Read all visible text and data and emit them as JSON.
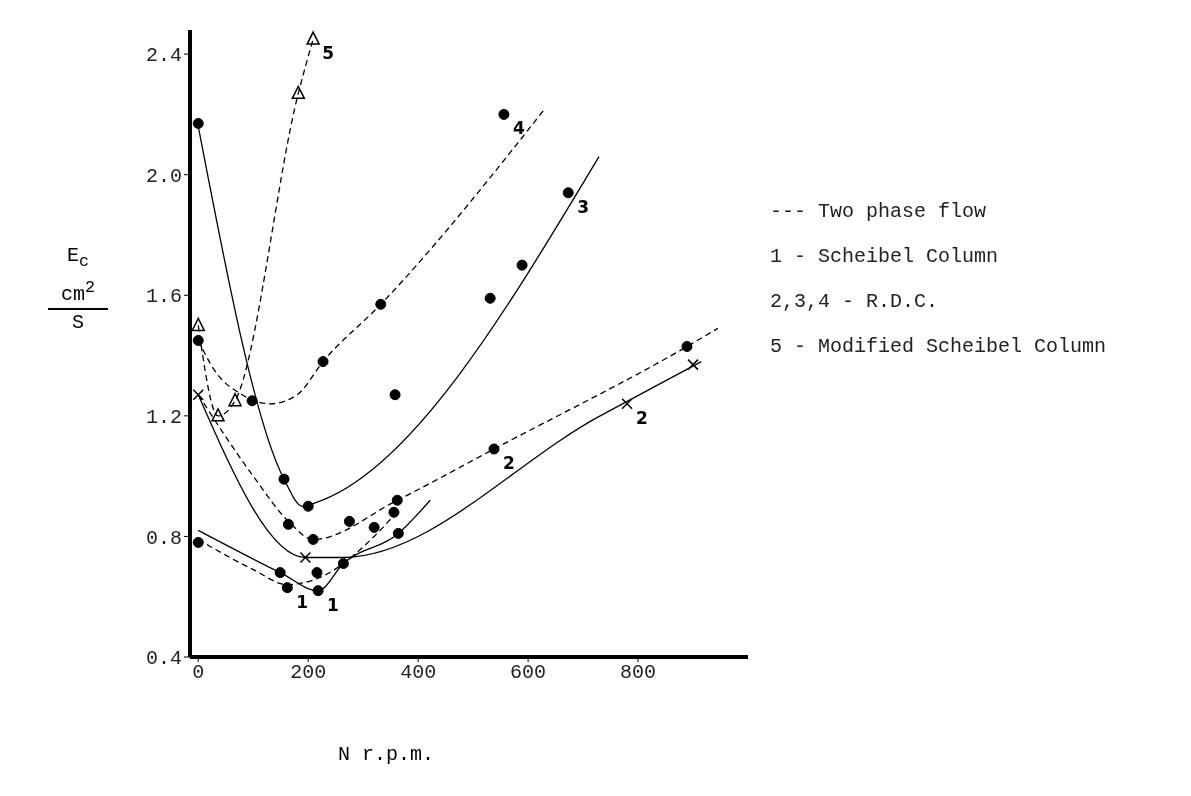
{
  "chart_data": {
    "type": "line",
    "xlabel": "N r.p.m.",
    "ylabel": "E$_{c}$ cm$^{2}$ S",
    "xlim": [
      -15,
      1000
    ],
    "xticks": [
      0,
      200,
      400,
      600,
      800
    ],
    "ylim": [
      0.4,
      2.48
    ],
    "yticks": [
      0.4,
      0.8,
      1.2,
      1.6,
      {
        "value": 2,
        "label": "2.0"
      },
      2.4
    ],
    "grid": false,
    "series": [
      {
        "color": "#000000",
        "line_style": "solid",
        "marker": "none",
        "x": [
          0,
          149,
          218,
          264,
          364,
          422
        ],
        "values": [
          0.82,
          0.68,
          0.62,
          0.71,
          0.81,
          0.92
        ]
      },
      {
        "color": "#000000",
        "line_style": "dashed",
        "marker": "none",
        "x": [
          0,
          100,
          162,
          216,
          320,
          356
        ],
        "values": [
          0.79,
          0.69,
          0.64,
          0.66,
          0.8,
          0.87
        ]
      },
      {
        "color": "#000000",
        "line_style": "solid",
        "marker": "none",
        "x": [
          0,
          195,
          262,
          731,
          915
        ],
        "values": [
          1.27,
          0.73,
          0.73,
          1.2,
          1.38
        ]
      },
      {
        "color": "#000000",
        "line_style": "dashed",
        "marker": "none",
        "x": [
          0,
          100,
          164,
          209,
          362,
          538,
          889,
          945
        ],
        "values": [
          1.27,
          1.0,
          0.85,
          0.79,
          0.92,
          1.09,
          1.43,
          1.49
        ]
      },
      {
        "color": "#000000",
        "line_style": "solid",
        "marker": "none",
        "x": [
          0,
          156,
          190,
          210,
          729
        ],
        "values": [
          2.16,
          0.99,
          0.9,
          0.91,
          2.06
        ]
      },
      {
        "color": "#000000",
        "line_style": "dashed",
        "marker": "none",
        "x": [
          0,
          30,
          80,
          131,
          180,
          227,
          332,
          631
        ],
        "values": [
          1.45,
          1.35,
          1.27,
          1.24,
          1.27,
          1.38,
          1.57,
          2.22
        ]
      },
      {
        "color": "#000000",
        "line_style": "dashed",
        "marker": "triangle",
        "x": [
          0,
          36,
          67,
          182,
          209
        ],
        "values": [
          1.5,
          1.2,
          1.25,
          2.27,
          2.45
        ]
      },
      {
        "type": "scatter",
        "color": "#000000",
        "marker": "circle",
        "x": [
          0,
          98,
          227,
          332,
          556,
          164,
          209,
          275,
          362,
          538,
          889,
          149,
          218,
          264,
          364
        ],
        "values": [
          1.45,
          1.25,
          1.38,
          1.57,
          2.2,
          0.84,
          0.79,
          0.85,
          0.92,
          1.09,
          1.43,
          0.68,
          0.62,
          0.71,
          0.81
        ]
      },
      {
        "type": "scatter",
        "color": "#000000",
        "marker": "circle",
        "x": [
          0,
          156,
          200,
          358,
          531,
          589,
          673,
          0,
          162,
          216,
          320,
          356
        ],
        "values": [
          2.17,
          0.99,
          0.9,
          1.27,
          1.59,
          1.7,
          1.94,
          0.78,
          0.63,
          0.68,
          0.83,
          0.88
        ]
      },
      {
        "type": "scatter",
        "color": "#000000",
        "marker": "cross",
        "x": [
          0,
          195,
          780,
          900
        ],
        "values": [
          1.27,
          0.73,
          1.24,
          1.37
        ]
      }
    ],
    "annotations": [
      "--- Two phase flow",
      "1 - Scheibel Column",
      "2,3,4 - R.D.C.",
      "5 - Modified Scheibel Column",
      {
        "text": "5",
        "x": 209,
        "y": 2.45
      },
      {
        "text": "4",
        "x": 556,
        "y": 2.2
      },
      {
        "text": "3",
        "x": 673,
        "y": 1.94
      },
      {
        "text": "2",
        "x": 538,
        "y": 1.09
      },
      {
        "text": "2",
        "x": 780,
        "y": 1.24
      },
      {
        "text": "1",
        "x": 162,
        "y": 0.63
      },
      {
        "text": "1",
        "x": 218,
        "y": 0.62
      }
    ]
  }
}
